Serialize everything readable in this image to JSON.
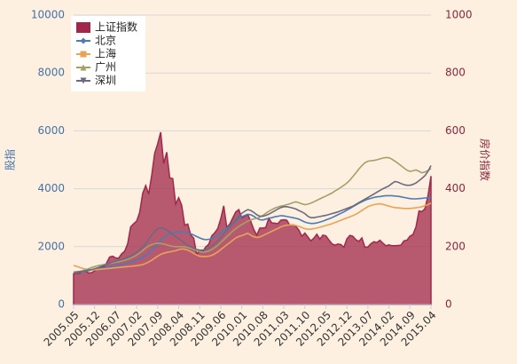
{
  "chart_data": {
    "type": "area-line",
    "ylabel": "股指",
    "y2label": "房价指数",
    "ylim": [
      0,
      10000
    ],
    "yticks": [
      0,
      2000,
      4000,
      6000,
      8000,
      10000
    ],
    "y2lim": [
      0,
      1000
    ],
    "y2ticks": [
      0,
      200,
      400,
      600,
      800,
      1000
    ],
    "grid": true,
    "legend": "upper left",
    "categories": [
      "2005.05",
      null,
      null,
      null,
      null,
      null,
      null,
      "2005.12",
      null,
      null,
      null,
      null,
      null,
      null,
      "2006.07",
      null,
      null,
      null,
      null,
      null,
      null,
      "2007.02",
      null,
      null,
      null,
      null,
      null,
      null,
      "2007.09",
      null,
      null,
      null,
      null,
      null,
      null,
      "2008.04",
      null,
      null,
      null,
      null,
      null,
      null,
      "2008.11",
      null,
      null,
      null,
      null,
      null,
      null,
      "2009.06",
      null,
      null,
      null,
      null,
      null,
      null,
      "2010.01",
      null,
      null,
      null,
      null,
      null,
      null,
      "2010.08",
      null,
      null,
      null,
      null,
      null,
      null,
      "2011.03",
      null,
      null,
      null,
      null,
      null,
      null,
      "2011.10",
      null,
      null,
      null,
      null,
      null,
      null,
      "2012.05",
      null,
      null,
      null,
      null,
      null,
      null,
      "2012.12",
      null,
      null,
      null,
      null,
      null,
      null,
      "2013.07",
      null,
      null,
      null,
      null,
      null,
      null,
      "2014.02",
      null,
      null,
      null,
      null,
      null,
      null,
      "2014.09",
      null,
      null,
      null,
      null,
      null,
      null,
      "2015.04"
    ],
    "series": [
      {
        "name": "上证指数",
        "kind": "area",
        "color": "#a0284a",
        "values": [
          1060,
          1080,
          1080,
          1160,
          1160,
          1090,
          1100,
          1160,
          1260,
          1300,
          1300,
          1440,
          1640,
          1670,
          1610,
          1600,
          1750,
          1840,
          2100,
          2680,
          2790,
          2880,
          3180,
          3840,
          4110,
          3820,
          4470,
          5220,
          5550,
          5950,
          4870,
          5260,
          4380,
          4350,
          3470,
          3690,
          3430,
          2740,
          2780,
          2400,
          2290,
          1730,
          1870,
          1820,
          1990,
          2080,
          2370,
          2480,
          2630,
          2960,
          3410,
          2670,
          2780,
          2990,
          3200,
          3280,
          2990,
          3050,
          3110,
          2870,
          2590,
          2400,
          2640,
          2640,
          2660,
          2980,
          2820,
          2810,
          2790,
          2910,
          2930,
          2910,
          2740,
          2760,
          2700,
          2570,
          2360,
          2470,
          2330,
          2200,
          2290,
          2430,
          2260,
          2400,
          2370,
          2230,
          2100,
          2050,
          2090,
          2070,
          1980,
          2270,
          2390,
          2360,
          2240,
          2180,
          2300,
          1980,
          1990,
          2100,
          2170,
          2140,
          2220,
          2120,
          2030,
          2060,
          2030,
          2030,
          2040,
          2050,
          2200,
          2220,
          2360,
          2420,
          2680,
          3230,
          3210,
          3310,
          3750,
          4440
        ]
      },
      {
        "name": "北京",
        "axis": "y2",
        "marker": "diamond",
        "color": "#4a7cb5",
        "values": [
          110,
          111,
          112,
          113,
          115,
          117,
          119,
          121,
          123,
          125,
          127,
          129,
          131,
          133,
          135,
          137,
          139,
          141,
          144,
          147,
          150,
          154,
          158,
          163,
          170,
          178,
          188,
          198,
          210,
          222,
          232,
          240,
          245,
          248,
          250,
          251,
          251,
          250,
          248,
          245,
          240,
          235,
          230,
          226,
          224,
          225,
          228,
          233,
          240,
          248,
          256,
          264,
          272,
          280,
          288,
          296,
          303,
          308,
          312,
          310,
          305,
          298,
          293,
          292,
          295,
          298,
          300,
          303,
          305,
          307,
          306,
          304,
          302,
          300,
          298,
          295,
          290,
          285,
          282,
          280,
          280,
          282,
          285,
          288,
          292,
          296,
          300,
          305,
          310,
          315,
          320,
          326,
          332,
          338,
          344,
          350,
          355,
          360,
          364,
          367,
          370,
          372,
          373,
          375,
          376,
          376,
          376,
          375,
          374,
          372,
          370,
          368,
          366,
          365,
          365,
          366,
          367,
          368,
          369,
          370
        ]
      },
      {
        "name": "上海",
        "axis": "y2",
        "marker": "square",
        "color": "#e8a35a",
        "values": [
          135,
          132,
          128,
          125,
          122,
          120,
          119,
          120,
          121,
          122,
          123,
          124,
          125,
          126,
          127,
          128,
          129,
          130,
          131,
          132,
          133,
          134,
          136,
          138,
          142,
          147,
          153,
          160,
          167,
          173,
          177,
          180,
          182,
          184,
          186,
          190,
          192,
          191,
          188,
          183,
          177,
          171,
          167,
          166,
          166,
          167,
          170,
          175,
          182,
          190,
          198,
          206,
          214,
          222,
          230,
          235,
          238,
          242,
          246,
          240,
          234,
          232,
          233,
          238,
          243,
          248,
          253,
          258,
          263,
          268,
          272,
          274,
          275,
          275,
          273,
          270,
          266,
          262,
          260,
          260,
          262,
          264,
          267,
          270,
          273,
          276,
          279,
          283,
          287,
          291,
          295,
          299,
          303,
          307,
          312,
          318,
          325,
          332,
          338,
          342,
          345,
          347,
          348,
          346,
          343,
          340,
          337,
          335,
          334,
          333,
          332,
          332,
          332,
          333,
          334,
          336,
          338,
          341,
          345,
          350
        ]
      },
      {
        "name": "广州",
        "axis": "y2",
        "marker": "triangle-up",
        "color": "#a5a068",
        "values": [
          110,
          112,
          114,
          117,
          120,
          124,
          128,
          131,
          134,
          136,
          138,
          140,
          142,
          144,
          146,
          148,
          150,
          153,
          156,
          160,
          165,
          171,
          178,
          186,
          195,
          202,
          207,
          210,
          212,
          211,
          209,
          206,
          203,
          201,
          200,
          200,
          200,
          199,
          197,
          194,
          190,
          186,
          183,
          181,
          182,
          185,
          190,
          197,
          205,
          214,
          224,
          234,
          244,
          254,
          262,
          270,
          276,
          282,
          288,
          292,
          296,
          298,
          302,
          308,
          315,
          322,
          328,
          333,
          337,
          340,
          342,
          345,
          348,
          352,
          355,
          352,
          348,
          345,
          347,
          350,
          355,
          360,
          365,
          370,
          375,
          380,
          385,
          392,
          398,
          405,
          412,
          420,
          430,
          442,
          455,
          468,
          480,
          490,
          495,
          497,
          498,
          500,
          503,
          506,
          508,
          507,
          502,
          495,
          488,
          480,
          472,
          464,
          460,
          462,
          465,
          460,
          455,
          458,
          463,
          470
        ]
      },
      {
        "name": "深圳",
        "axis": "y2",
        "marker": "triangle-down",
        "color": "#6b6a80",
        "values": [
          112,
          113,
          114,
          115,
          117,
          119,
          121,
          124,
          127,
          131,
          135,
          139,
          143,
          147,
          150,
          153,
          156,
          159,
          163,
          168,
          174,
          181,
          189,
          198,
          210,
          225,
          240,
          252,
          262,
          265,
          263,
          258,
          250,
          242,
          235,
          228,
          220,
          212,
          205,
          199,
          194,
          190,
          188,
          188,
          190,
          195,
          202,
          210,
          220,
          232,
          244,
          256,
          268,
          280,
          292,
          304,
          315,
          322,
          328,
          325,
          318,
          310,
          305,
          305,
          308,
          312,
          318,
          324,
          330,
          335,
          338,
          338,
          336,
          333,
          330,
          325,
          320,
          314,
          305,
          300,
          300,
          302,
          304,
          306,
          308,
          311,
          314,
          317,
          320,
          324,
          328,
          332,
          336,
          340,
          346,
          352,
          358,
          364,
          370,
          376,
          382,
          388,
          394,
          400,
          405,
          410,
          418,
          425,
          423,
          418,
          414,
          412,
          412,
          415,
          420,
          428,
          436,
          445,
          460,
          480
        ]
      }
    ]
  }
}
